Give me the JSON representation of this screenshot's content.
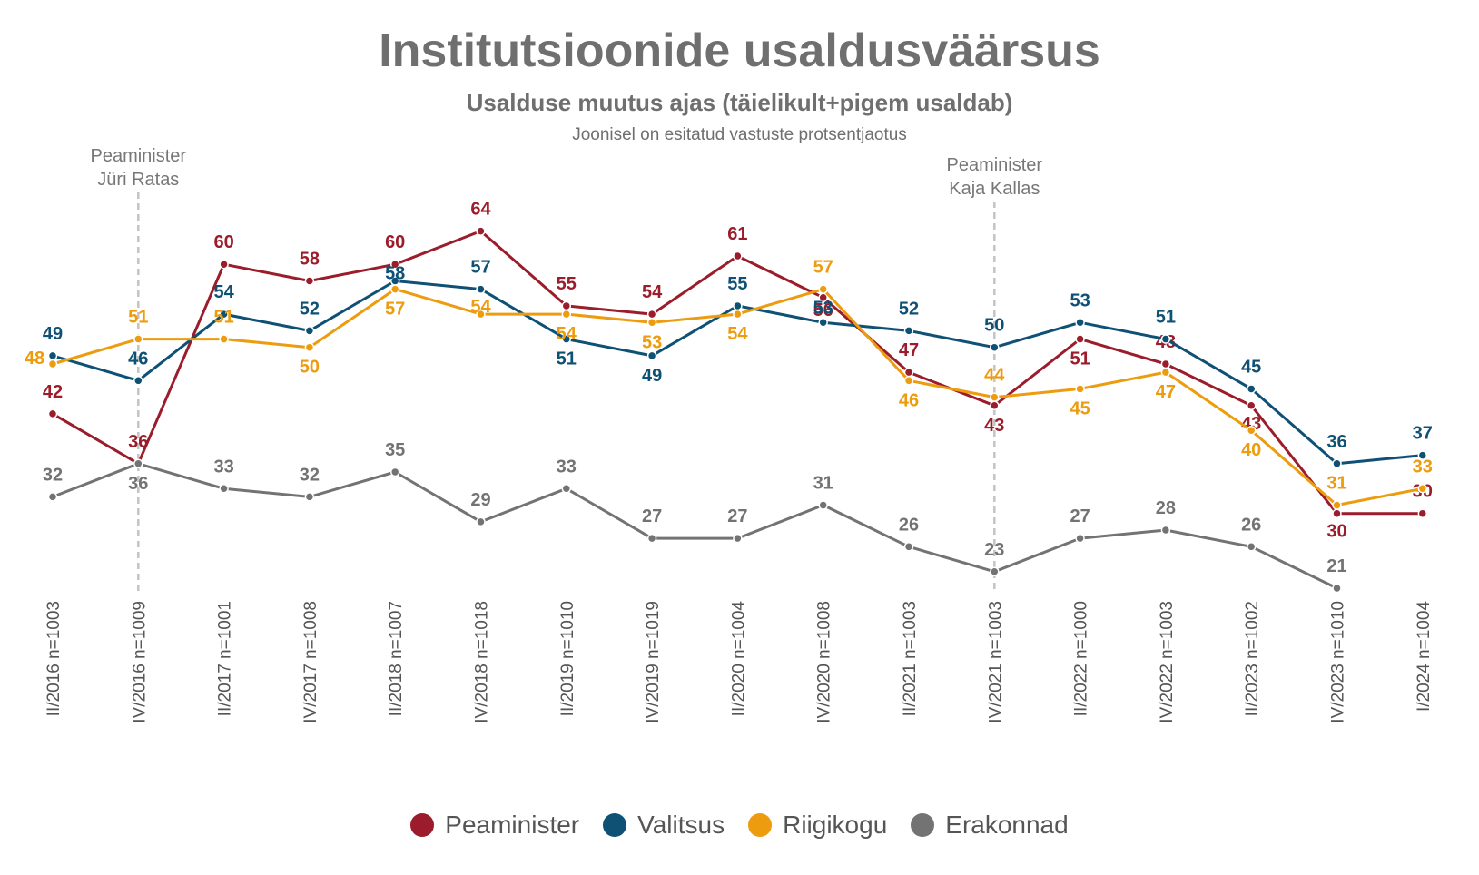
{
  "title": "Institutsioonide usaldusväärsus",
  "subtitle": "Usalduse muutus ajas (täielikult+pigem usaldab)",
  "note": "Joonisel on esitatud vastuste protsentjaotus",
  "annotations": [
    {
      "line1": "Peaminister",
      "line2": "Jüri Ratas",
      "at_index": 1
    },
    {
      "line1": "Peaminister",
      "line2": "Kaja Kallas",
      "at_index": 11
    }
  ],
  "colors": {
    "Peaminister": "#9b1c2a",
    "Valitsus": "#0f5075",
    "Riigikogu": "#ec9c0e",
    "Erakonnad": "#737373"
  },
  "chart_data": {
    "type": "line",
    "title": "Institutsioonide usaldusväärsus",
    "xlabel": "",
    "ylabel": "",
    "grid": false,
    "legend_position": "bottom",
    "categories": [
      "II/2016 n=1003",
      "IV/2016 n=1009",
      "II/2017 n=1001",
      "IV/2017 n=1008",
      "II/2018 n=1007",
      "IV/2018 n=1018",
      "II/2019 n=1010",
      "IV/2019 n=1019",
      "II/2020 n=1004",
      "IV/2020 n=1008",
      "II/2021 n=1003",
      "IV/2021 n=1003",
      "II/2022 n=1000",
      "IV/2022 n=1003",
      "II/2023 n=1002",
      "IV/2023 n=1010",
      "I/2024 n=1004"
    ],
    "series": [
      {
        "name": "Peaminister",
        "values": [
          42,
          36,
          60,
          58,
          60,
          64,
          55,
          54,
          61,
          56,
          47,
          43,
          51,
          48,
          43,
          30,
          30
        ]
      },
      {
        "name": "Valitsus",
        "values": [
          49,
          46,
          54,
          52,
          58,
          57,
          51,
          49,
          55,
          53,
          52,
          50,
          53,
          51,
          45,
          36,
          37
        ]
      },
      {
        "name": "Riigikogu",
        "values": [
          48,
          51,
          51,
          50,
          57,
          54,
          54,
          53,
          54,
          57,
          46,
          44,
          45,
          47,
          40,
          31,
          33
        ]
      },
      {
        "name": "Erakonnad",
        "values": [
          32,
          36,
          33,
          32,
          35,
          29,
          33,
          27,
          27,
          31,
          26,
          23,
          27,
          28,
          26,
          21,
          null
        ]
      }
    ]
  }
}
